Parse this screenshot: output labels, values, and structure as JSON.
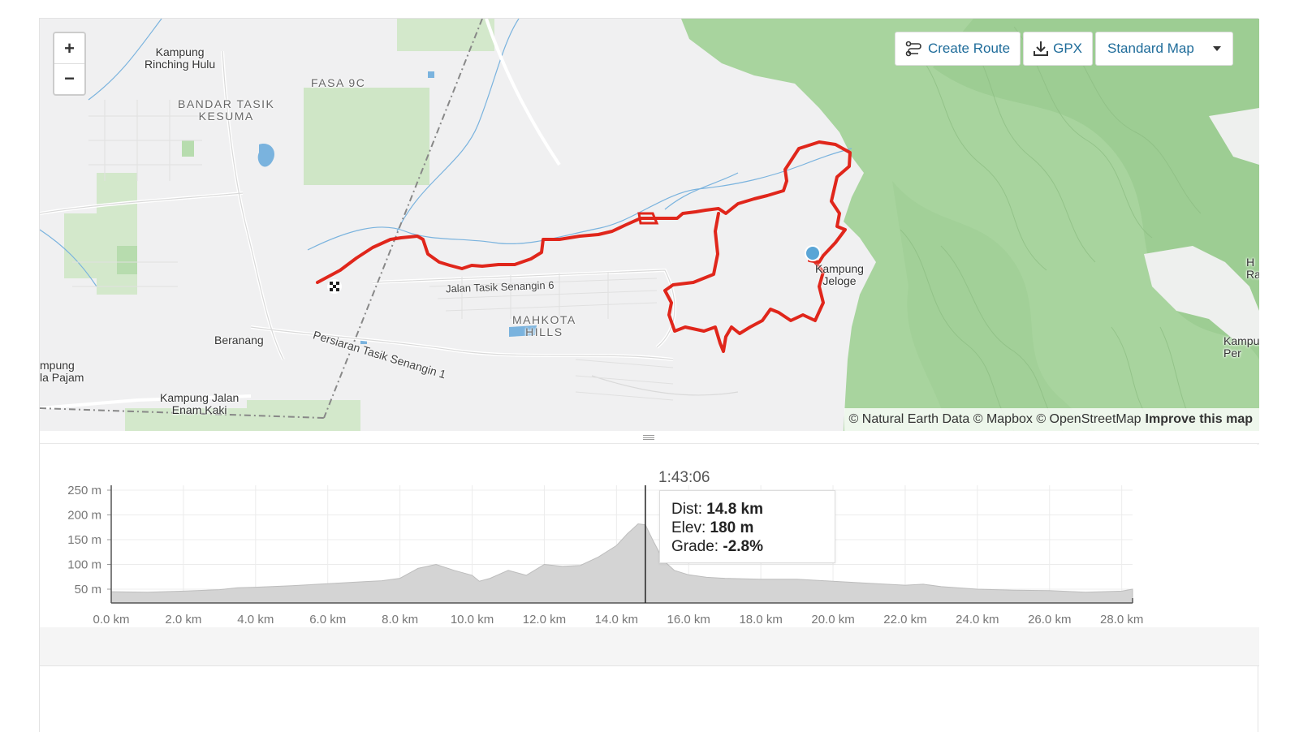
{
  "map": {
    "controls": {
      "zoom_in": "+",
      "zoom_out": "−"
    },
    "toolbar": {
      "create_route": "Create Route",
      "create_route_icon": "route-icon",
      "gpx": "GPX",
      "gpx_icon": "download-icon",
      "map_style": "Standard Map"
    },
    "labels": {
      "kampung_rinching": "Kampung\nRinching Hulu",
      "fasa": "FASA 9C",
      "bandar_tasik": "BANDAR TASIK\nKESUMA",
      "jalan_tasik": "Jalan Tasik Senangin 6",
      "persiaran": "Persiaran Tasik Senangin 1",
      "mahkota": "MAHKOTA\nHILLS",
      "beranang": "Beranang",
      "mpung": "mpung\nla Pajam",
      "kampung_jalan": "Kampung Jalan\nEnam Kaki",
      "kampung_jeloge": "Kampung\nJeloge",
      "edge_h": "H\nRa",
      "edge_kampu": "Kampu\nPer"
    },
    "attribution": {
      "text": "© Natural Earth Data © Mapbox © OpenStreetMap",
      "link": "Improve this map"
    },
    "colors": {
      "route": "#e0261b",
      "marker": "#5aa5d6",
      "forest": "#a9d5a0",
      "water": "#5fa7d6"
    }
  },
  "elevation": {
    "y_ticks": [
      "250 m",
      "200 m",
      "150 m",
      "100 m",
      "50 m"
    ],
    "x_ticks": [
      "0.0 km",
      "2.0 km",
      "4.0 km",
      "6.0 km",
      "8.0 km",
      "10.0 km",
      "12.0 km",
      "14.0 km",
      "16.0 km",
      "18.0 km",
      "20.0 km",
      "22.0 km",
      "24.0 km",
      "26.0 km",
      "28.0 km"
    ],
    "cursor_time": "1:43:06",
    "tooltip": {
      "dist_label": "Dist:",
      "dist_value": "14.8 km",
      "elev_label": "Elev:",
      "elev_value": "180 m",
      "grade_label": "Grade:",
      "grade_value": "-2.8%"
    }
  },
  "chart_data": {
    "type": "area",
    "xlabel": "",
    "ylabel": "",
    "xlim": [
      0,
      28.3
    ],
    "ylim": [
      20,
      260
    ],
    "x": [
      0,
      1,
      2,
      3,
      3.5,
      4,
      5,
      6,
      7,
      7.5,
      8,
      8.5,
      9,
      9.5,
      10,
      10.2,
      10.5,
      11,
      11.5,
      12,
      12.5,
      13,
      13.5,
      14,
      14.3,
      14.6,
      14.8,
      15,
      15.3,
      15.6,
      16,
      16.5,
      17,
      18,
      19,
      20,
      21,
      22,
      22.5,
      23,
      24,
      25,
      26,
      27,
      28,
      28.3
    ],
    "series": [
      {
        "values": [
          45,
          44,
          46,
          49,
          53,
          54,
          57,
          61,
          65,
          67,
          72,
          92,
          100,
          88,
          78,
          66,
          72,
          88,
          78,
          100,
          96,
          98,
          115,
          138,
          162,
          182,
          180,
          150,
          108,
          88,
          79,
          74,
          72,
          70,
          70,
          66,
          62,
          58,
          60,
          55,
          50,
          48,
          47,
          44,
          46,
          50
        ]
      }
    ],
    "cursor": {
      "x": 14.8,
      "y": 180
    }
  }
}
